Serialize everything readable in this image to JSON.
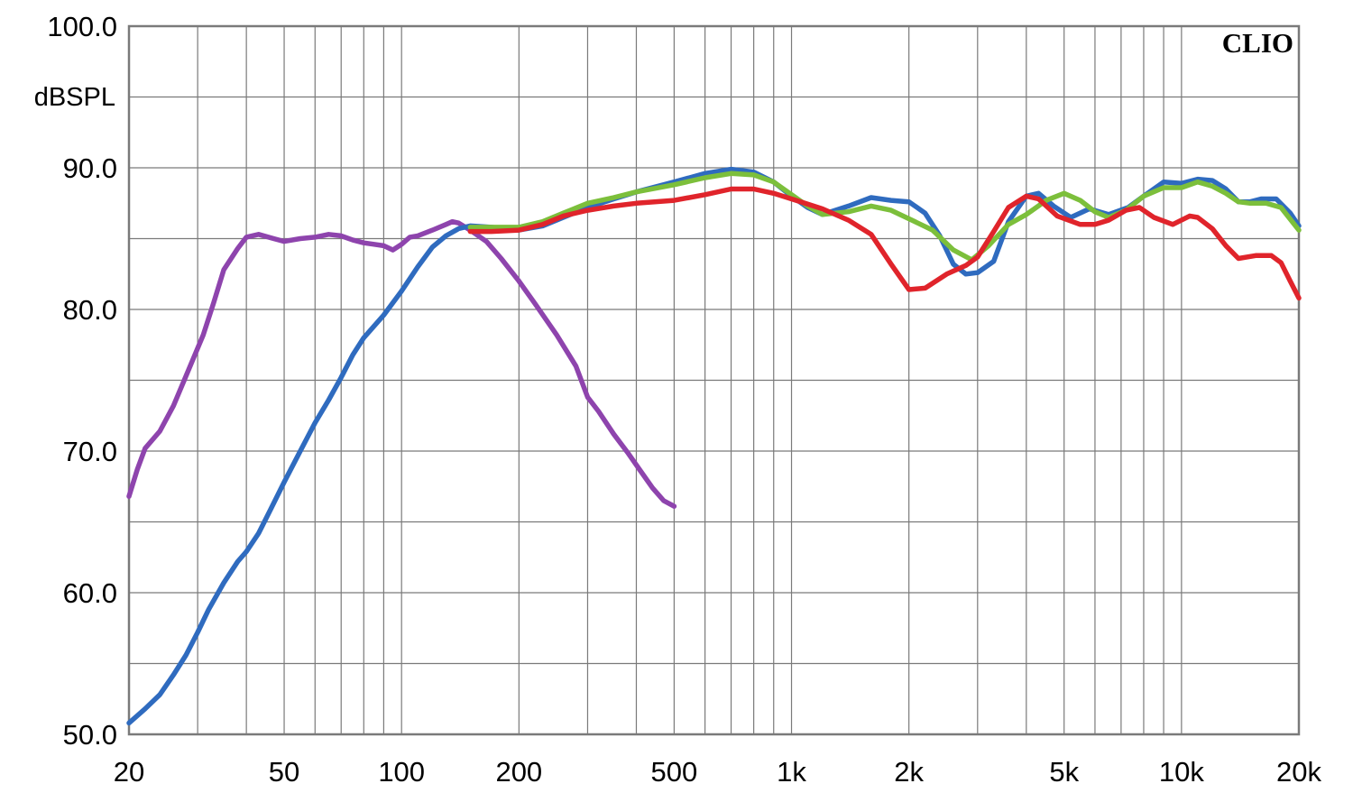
{
  "chart_data": {
    "type": "line",
    "title": "",
    "brand": "CLIO",
    "xlabel": "",
    "ylabel": "dBSPL",
    "x_scale": "log",
    "xlim": [
      20,
      20000
    ],
    "ylim": [
      50,
      100
    ],
    "grid": true,
    "legend": "none",
    "x_ticks": [
      {
        "value": 20,
        "label": "20"
      },
      {
        "value": 50,
        "label": "50"
      },
      {
        "value": 100,
        "label": "100"
      },
      {
        "value": 200,
        "label": "200"
      },
      {
        "value": 500,
        "label": "500"
      },
      {
        "value": 1000,
        "label": "1k"
      },
      {
        "value": 2000,
        "label": "2k"
      },
      {
        "value": 5000,
        "label": "5k"
      },
      {
        "value": 10000,
        "label": "10k"
      },
      {
        "value": 20000,
        "label": "20k"
      }
    ],
    "y_ticks": [
      {
        "value": 100,
        "label": "100.0"
      },
      {
        "value": 90,
        "label": "90.0"
      },
      {
        "value": 80,
        "label": "80.0"
      },
      {
        "value": 70,
        "label": "70.0"
      },
      {
        "value": 60,
        "label": "60.0"
      },
      {
        "value": 50,
        "label": "50.0"
      }
    ],
    "series": [
      {
        "color": "#8e44ad",
        "points": [
          [
            20,
            66.8
          ],
          [
            21,
            68.7
          ],
          [
            22,
            70.2
          ],
          [
            24,
            71.4
          ],
          [
            26,
            73.2
          ],
          [
            28,
            75.3
          ],
          [
            31,
            78.2
          ],
          [
            33,
            80.5
          ],
          [
            35,
            82.8
          ],
          [
            38,
            84.3
          ],
          [
            40,
            85.1
          ],
          [
            43,
            85.3
          ],
          [
            47,
            85.0
          ],
          [
            50,
            84.8
          ],
          [
            55,
            85.0
          ],
          [
            60,
            85.1
          ],
          [
            65,
            85.3
          ],
          [
            70,
            85.2
          ],
          [
            75,
            84.9
          ],
          [
            80,
            84.7
          ],
          [
            85,
            84.6
          ],
          [
            90,
            84.5
          ],
          [
            95,
            84.2
          ],
          [
            100,
            84.6
          ],
          [
            105,
            85.1
          ],
          [
            110,
            85.2
          ],
          [
            120,
            85.6
          ],
          [
            130,
            86.0
          ],
          [
            135,
            86.2
          ],
          [
            140,
            86.1
          ],
          [
            150,
            85.6
          ],
          [
            165,
            84.8
          ],
          [
            180,
            83.6
          ],
          [
            200,
            82.0
          ],
          [
            220,
            80.4
          ],
          [
            250,
            78.2
          ],
          [
            280,
            76.0
          ],
          [
            300,
            73.8
          ],
          [
            320,
            72.8
          ],
          [
            350,
            71.2
          ],
          [
            380,
            69.9
          ],
          [
            410,
            68.6
          ],
          [
            440,
            67.4
          ],
          [
            470,
            66.5
          ],
          [
            500,
            66.1
          ]
        ]
      },
      {
        "color": "#2f6bbf",
        "points": [
          [
            20,
            50.8
          ],
          [
            22,
            51.8
          ],
          [
            24,
            52.8
          ],
          [
            26,
            54.2
          ],
          [
            28,
            55.6
          ],
          [
            30,
            57.2
          ],
          [
            32,
            58.8
          ],
          [
            35,
            60.7
          ],
          [
            38,
            62.2
          ],
          [
            40,
            62.9
          ],
          [
            43,
            64.2
          ],
          [
            46,
            65.8
          ],
          [
            50,
            67.8
          ],
          [
            55,
            70.0
          ],
          [
            60,
            72.0
          ],
          [
            65,
            73.6
          ],
          [
            70,
            75.2
          ],
          [
            75,
            76.8
          ],
          [
            80,
            78.0
          ],
          [
            90,
            79.6
          ],
          [
            100,
            81.3
          ],
          [
            110,
            83.0
          ],
          [
            120,
            84.4
          ],
          [
            130,
            85.2
          ],
          [
            140,
            85.7
          ],
          [
            150,
            85.9
          ],
          [
            170,
            85.8
          ],
          [
            200,
            85.6
          ],
          [
            230,
            85.9
          ],
          [
            260,
            86.5
          ],
          [
            300,
            87.2
          ],
          [
            350,
            87.8
          ],
          [
            400,
            88.3
          ],
          [
            500,
            89.0
          ],
          [
            600,
            89.6
          ],
          [
            700,
            89.9
          ],
          [
            800,
            89.7
          ],
          [
            900,
            89.0
          ],
          [
            1000,
            88.0
          ],
          [
            1100,
            87.2
          ],
          [
            1200,
            86.7
          ],
          [
            1400,
            87.3
          ],
          [
            1600,
            87.9
          ],
          [
            1800,
            87.7
          ],
          [
            2000,
            87.6
          ],
          [
            2200,
            86.8
          ],
          [
            2400,
            85.2
          ],
          [
            2600,
            83.2
          ],
          [
            2800,
            82.5
          ],
          [
            3000,
            82.6
          ],
          [
            3300,
            83.4
          ],
          [
            3600,
            86.2
          ],
          [
            4000,
            88.0
          ],
          [
            4300,
            88.2
          ],
          [
            4700,
            87.3
          ],
          [
            5200,
            86.5
          ],
          [
            5800,
            87.1
          ],
          [
            6500,
            86.7
          ],
          [
            7300,
            87.2
          ],
          [
            8000,
            88.0
          ],
          [
            9000,
            89.0
          ],
          [
            10000,
            88.9
          ],
          [
            11000,
            89.2
          ],
          [
            12000,
            89.1
          ],
          [
            13000,
            88.5
          ],
          [
            14000,
            87.6
          ],
          [
            15000,
            87.6
          ],
          [
            16000,
            87.8
          ],
          [
            17500,
            87.8
          ],
          [
            19000,
            86.8
          ],
          [
            20000,
            85.9
          ]
        ]
      },
      {
        "color": "#7cbf3b",
        "points": [
          [
            150,
            85.8
          ],
          [
            170,
            85.8
          ],
          [
            200,
            85.8
          ],
          [
            230,
            86.2
          ],
          [
            260,
            86.8
          ],
          [
            300,
            87.5
          ],
          [
            350,
            87.9
          ],
          [
            400,
            88.3
          ],
          [
            500,
            88.8
          ],
          [
            600,
            89.3
          ],
          [
            700,
            89.6
          ],
          [
            800,
            89.5
          ],
          [
            900,
            89.0
          ],
          [
            1000,
            88.1
          ],
          [
            1100,
            87.3
          ],
          [
            1200,
            86.7
          ],
          [
            1400,
            86.9
          ],
          [
            1600,
            87.3
          ],
          [
            1800,
            87.0
          ],
          [
            2000,
            86.4
          ],
          [
            2300,
            85.6
          ],
          [
            2600,
            84.2
          ],
          [
            2900,
            83.5
          ],
          [
            3200,
            84.5
          ],
          [
            3600,
            86.0
          ],
          [
            4000,
            86.7
          ],
          [
            4500,
            87.7
          ],
          [
            5000,
            88.2
          ],
          [
            5500,
            87.7
          ],
          [
            6000,
            86.9
          ],
          [
            6500,
            86.5
          ],
          [
            7200,
            87.0
          ],
          [
            8000,
            88.0
          ],
          [
            9000,
            88.6
          ],
          [
            10000,
            88.6
          ],
          [
            11000,
            89.0
          ],
          [
            12000,
            88.7
          ],
          [
            13000,
            88.2
          ],
          [
            14000,
            87.6
          ],
          [
            15000,
            87.5
          ],
          [
            16500,
            87.5
          ],
          [
            18000,
            87.2
          ],
          [
            20000,
            85.6
          ]
        ]
      },
      {
        "color": "#e0242b",
        "points": [
          [
            150,
            85.5
          ],
          [
            170,
            85.5
          ],
          [
            200,
            85.6
          ],
          [
            230,
            86.0
          ],
          [
            260,
            86.6
          ],
          [
            300,
            87.0
          ],
          [
            350,
            87.3
          ],
          [
            400,
            87.5
          ],
          [
            500,
            87.7
          ],
          [
            600,
            88.1
          ],
          [
            700,
            88.5
          ],
          [
            800,
            88.5
          ],
          [
            900,
            88.2
          ],
          [
            1000,
            87.8
          ],
          [
            1200,
            87.1
          ],
          [
            1400,
            86.3
          ],
          [
            1600,
            85.3
          ],
          [
            1800,
            83.2
          ],
          [
            2000,
            81.4
          ],
          [
            2200,
            81.5
          ],
          [
            2500,
            82.5
          ],
          [
            2800,
            83.1
          ],
          [
            3000,
            83.7
          ],
          [
            3300,
            85.5
          ],
          [
            3600,
            87.2
          ],
          [
            4000,
            88.0
          ],
          [
            4300,
            87.8
          ],
          [
            4800,
            86.6
          ],
          [
            5500,
            86.0
          ],
          [
            6000,
            86.0
          ],
          [
            6500,
            86.3
          ],
          [
            7200,
            87.0
          ],
          [
            7800,
            87.2
          ],
          [
            8500,
            86.5
          ],
          [
            9500,
            86.0
          ],
          [
            10500,
            86.6
          ],
          [
            11000,
            86.5
          ],
          [
            12000,
            85.7
          ],
          [
            13000,
            84.5
          ],
          [
            14000,
            83.6
          ],
          [
            15500,
            83.8
          ],
          [
            17000,
            83.8
          ],
          [
            18000,
            83.3
          ],
          [
            19000,
            82.0
          ],
          [
            20000,
            80.8
          ]
        ]
      }
    ]
  }
}
